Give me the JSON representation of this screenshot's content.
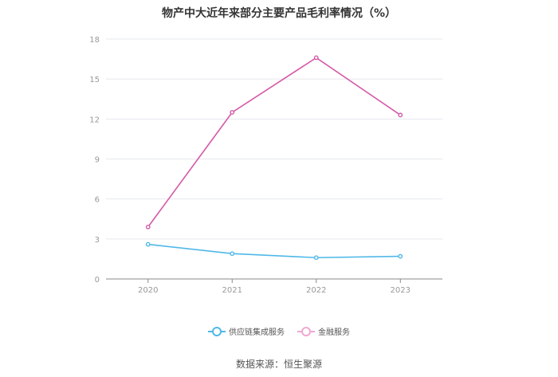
{
  "chart_data": {
    "type": "line",
    "title": "物产中大近年来部分主要产品毛利率情况（%）",
    "categories": [
      "2020",
      "2021",
      "2022",
      "2023"
    ],
    "ylim": [
      0,
      18
    ],
    "yticks": [
      0,
      3,
      6,
      9,
      12,
      15,
      18
    ],
    "grid": true,
    "legend_position": "bottom",
    "series": [
      {
        "name": "供应链集成服务",
        "values": [
          2.6,
          1.9,
          1.6,
          1.7
        ],
        "color": "#4fb8e8"
      },
      {
        "name": "金融服务",
        "values": [
          3.9,
          12.5,
          16.6,
          12.3
        ],
        "color": "#d45aa8"
      }
    ]
  },
  "source": "数据来源：恒生聚源"
}
